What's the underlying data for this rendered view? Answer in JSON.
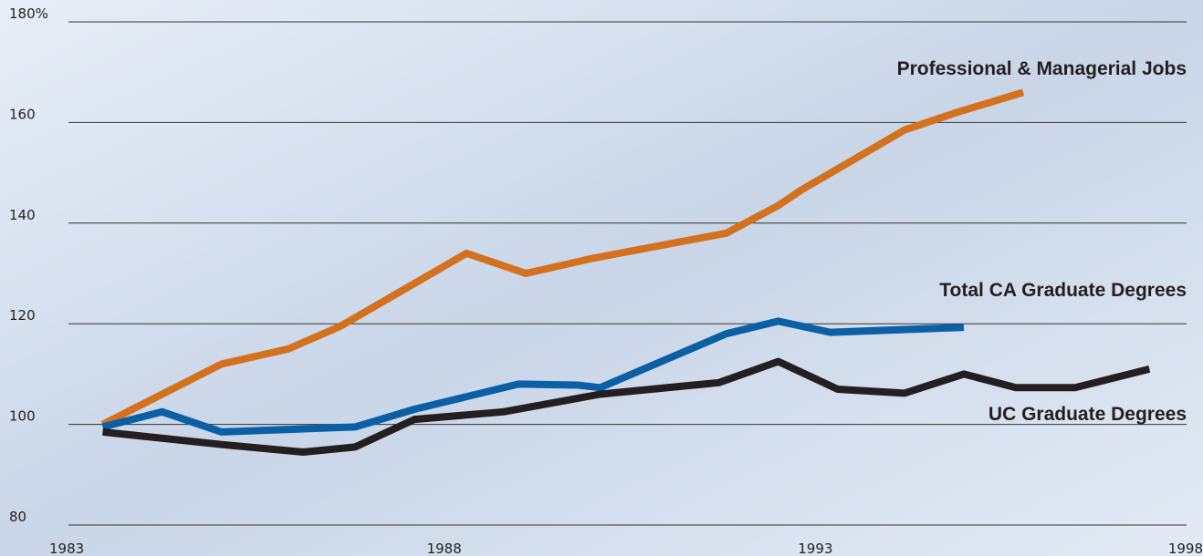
{
  "chart_data": {
    "type": "line",
    "x_range_note_free": null,
    "xlim": [
      1983,
      1998
    ],
    "xticks": [
      1983,
      1988,
      1993,
      1998
    ],
    "ylim": [
      80,
      180
    ],
    "yticks": [
      80,
      100,
      120,
      140,
      160,
      {
        "value": 180,
        "label": "180%"
      }
    ],
    "grid": true,
    "series": [
      {
        "name": "Professional & Managerial Jobs",
        "color": "#d4711f",
        "x": [
          1983.4,
          1985.0,
          1985.9,
          1986.6,
          1988.3,
          1989.1,
          1990.0,
          1991.8,
          1992.5,
          1992.8,
          1994.2,
          1994.9,
          1995.8
        ],
        "values": [
          100,
          112,
          115,
          119.5,
          134,
          130,
          133,
          138,
          143.5,
          146.5,
          158.5,
          162,
          166
        ]
      },
      {
        "name": "Total CA Graduate Degrees",
        "color": "#0b5fa5",
        "x": [
          1983.4,
          1984.2,
          1985.0,
          1986.8,
          1987.6,
          1989.0,
          1989.8,
          1990.1,
          1991.8,
          1992.5,
          1993.2,
          1995.0
        ],
        "values": [
          99.5,
          102.5,
          98.5,
          99.5,
          103,
          108,
          107.8,
          107.3,
          118,
          120.5,
          118.3,
          119.3
        ]
      },
      {
        "name": "UC Graduate Degrees",
        "color": "#231f20",
        "x": [
          1983.4,
          1985.0,
          1986.1,
          1986.8,
          1987.6,
          1988.8,
          1990.1,
          1991.7,
          1992.5,
          1993.3,
          1994.2,
          1995.0,
          1995.7,
          1996.5,
          1997.5
        ],
        "values": [
          98.5,
          96,
          94.5,
          95.5,
          101,
          102.5,
          106,
          108.3,
          112.5,
          107,
          106.2,
          110,
          107.3,
          107.3,
          111
        ]
      }
    ]
  }
}
